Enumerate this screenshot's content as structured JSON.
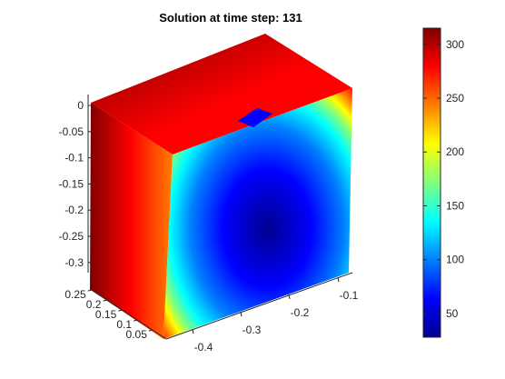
{
  "title": "Solution at time step: 131",
  "colors": {
    "colormap": [
      "#00008f",
      "#0000ff",
      "#007fff",
      "#00ffff",
      "#7fff7f",
      "#ffff00",
      "#ff7f00",
      "#ff0000",
      "#7f0000"
    ],
    "axis": "#262626",
    "background": "#ffffff"
  },
  "chart_data": {
    "type": "surface",
    "colormap": "jet",
    "axes": {
      "x": {
        "ticks": [
          -0.4,
          -0.3,
          -0.2,
          -0.1
        ],
        "labels": [
          "-0.4",
          "-0.3",
          "-0.2",
          "-0.1"
        ]
      },
      "y": {
        "ticks": [
          0.05,
          0.1,
          0.15,
          0.2,
          0.25
        ],
        "labels": [
          "0.05",
          "0.1",
          "0.15",
          "0.2",
          "0.25"
        ]
      },
      "z": {
        "ticks": [
          0,
          -0.05,
          -0.1,
          -0.15,
          -0.2,
          -0.25,
          -0.3
        ],
        "labels": [
          "0",
          "-0.05",
          "-0.1",
          "-0.15",
          "-0.2",
          "-0.25",
          "-0.3"
        ]
      }
    },
    "colorbar": {
      "range": [
        28,
        315
      ],
      "ticks": [
        50,
        100,
        150,
        200,
        250,
        300
      ],
      "labels": [
        "50",
        "100",
        "150",
        "200",
        "250",
        "300"
      ]
    },
    "faces": {
      "front": {
        "center_value": 30,
        "edge_value": 315
      },
      "top": {
        "value": 315
      },
      "side": {
        "value": 315
      }
    },
    "grid": false
  }
}
